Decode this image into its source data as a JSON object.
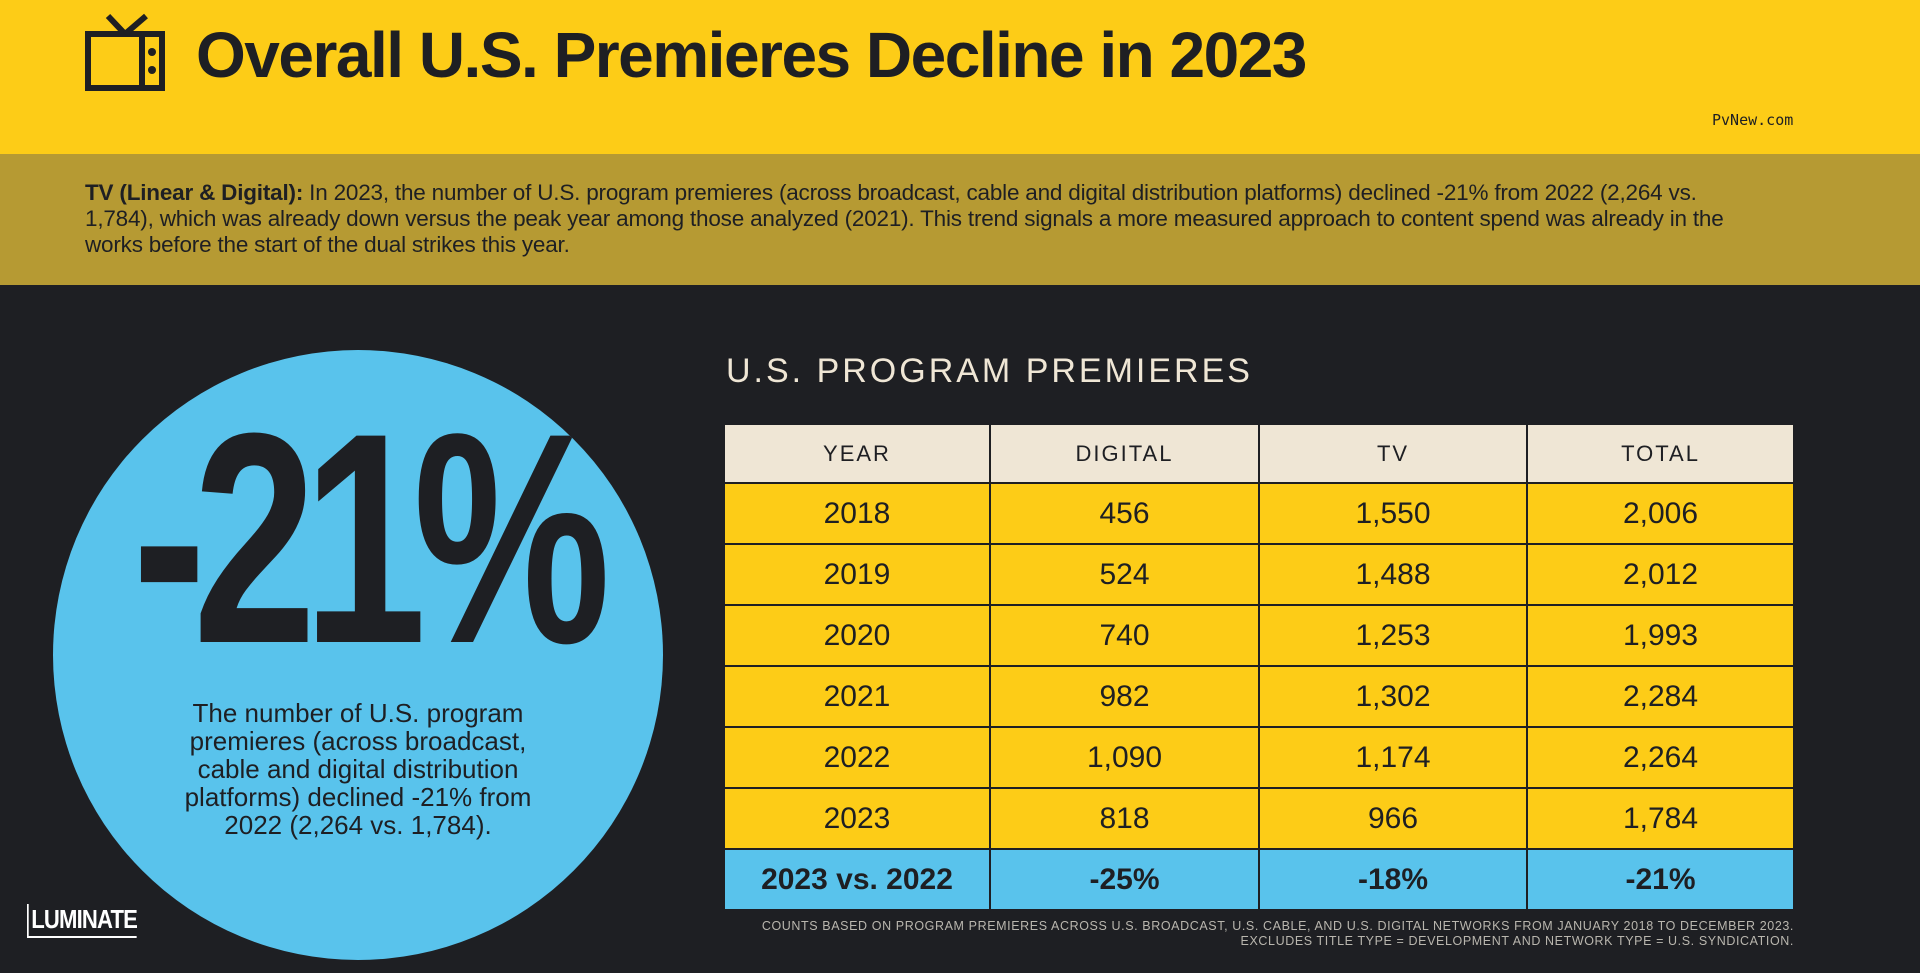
{
  "header": {
    "title": "Overall U.S. Premieres Decline in 2023",
    "watermark": "PvNew.com",
    "icon": "tv-icon",
    "background": "#fdcc17"
  },
  "intro": {
    "lead": "TV (Linear & Digital):",
    "body": " In 2023, the number of U.S. program premieres (across broadcast, cable and digital distribution platforms) declined -21% from 2022 (2,264 vs. 1,784), which was already down versus the peak year among those analyzed (2021). This trend signals a more measured approach to content spend was already in the works before the start of the dual strikes this year."
  },
  "stat": {
    "value": "-21%",
    "description": "The number of U.S. program premieres (across broadcast, cable and digital distribution platforms) declined -21% from 2022 (2,264 vs. 1,784).",
    "color": "#59c3ec"
  },
  "logo": "LUMINATE",
  "chart_data": {
    "type": "table",
    "title": "U.S. PROGRAM PREMIERES",
    "columns": [
      "YEAR",
      "DIGITAL",
      "TV",
      "TOTAL"
    ],
    "rows": [
      [
        "2018",
        "456",
        "1,550",
        "2,006"
      ],
      [
        "2019",
        "524",
        "1,488",
        "2,012"
      ],
      [
        "2020",
        "740",
        "1,253",
        "1,993"
      ],
      [
        "2021",
        "982",
        "1,302",
        "2,284"
      ],
      [
        "2022",
        "1,090",
        "1,174",
        "2,264"
      ],
      [
        "2023",
        "818",
        "966",
        "1,784"
      ]
    ],
    "summary_row": [
      "2023 vs. 2022",
      "-25%",
      "-18%",
      "-21%"
    ],
    "colors": {
      "header_fill": "#efe6d5",
      "row_fill": "#fdcc17",
      "summary_fill": "#59c3ec",
      "grid": "#1e1f23"
    }
  },
  "footnote": {
    "line1": "COUNTS BASED ON PROGRAM PREMIERES ACROSS U.S. BROADCAST, U.S. CABLE, AND U.S. DIGITAL NETWORKS FROM JANUARY 2018 TO DECEMBER 2023.",
    "line2": "EXCLUDES TITLE TYPE = DEVELOPMENT AND NETWORK TYPE = U.S. SYNDICATION."
  }
}
